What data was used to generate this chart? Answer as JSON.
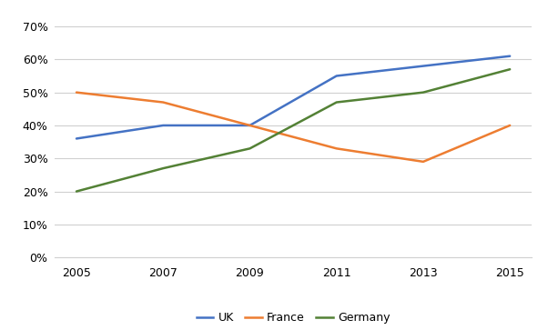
{
  "years": [
    2005,
    2007,
    2009,
    2011,
    2013,
    2015
  ],
  "UK": [
    36,
    40,
    40,
    55,
    58,
    61
  ],
  "France": [
    50,
    47,
    40,
    33,
    29,
    40
  ],
  "Germany": [
    20,
    27,
    33,
    47,
    50,
    57
  ],
  "colors": {
    "UK": "#4472C4",
    "France": "#ED7D31",
    "Germany": "#538135"
  },
  "ylim_min": 0,
  "ylim_max": 75,
  "yticks": [
    0,
    10,
    20,
    30,
    40,
    50,
    60,
    70
  ],
  "ytick_labels": [
    "0%",
    "10%",
    "20%",
    "30%",
    "40%",
    "50%",
    "60%",
    "70%"
  ],
  "background_color": "#FFFFFF",
  "grid_color": "#D0D0D0",
  "line_width": 1.8,
  "font_size": 9,
  "legend_font_size": 9
}
